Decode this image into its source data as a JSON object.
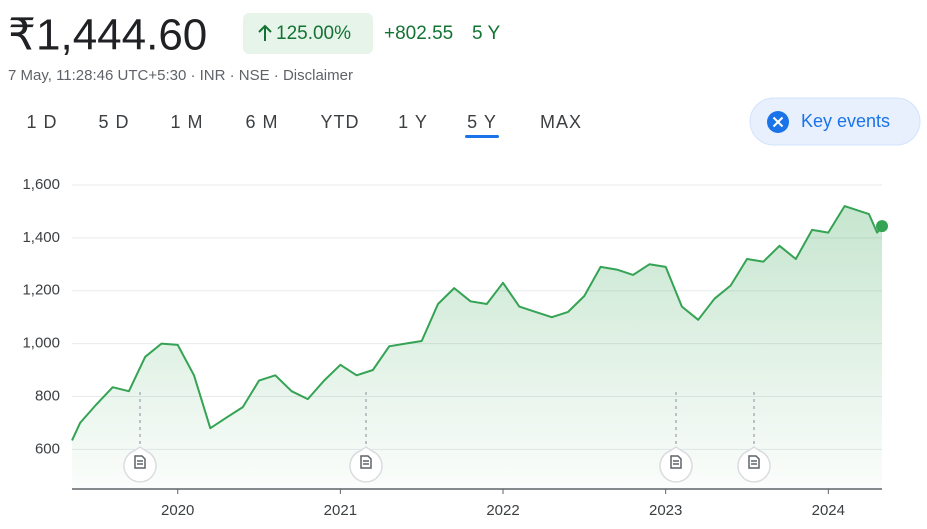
{
  "header": {
    "price": "₹1,444.60",
    "change_percent": "125.00%",
    "change": "+802.55",
    "period": "5 Y",
    "meta": "7 May, 11:28:46 UTC+5:30 · INR · NSE · Disclaimer"
  },
  "tabs": {
    "items": [
      "1 D",
      "5 D",
      "1 M",
      "6 M",
      "YTD",
      "1 Y",
      "5 Y",
      "MAX"
    ],
    "selected": 6
  },
  "key_events": "Key events",
  "chart_data": {
    "type": "line",
    "color": "#34a353",
    "x": [
      2019.35,
      2019.4,
      2019.5,
      2019.6,
      2019.7,
      2019.8,
      2019.9,
      2020.0,
      2020.1,
      2020.2,
      2020.3,
      2020.4,
      2020.5,
      2020.6,
      2020.7,
      2020.8,
      2020.9,
      2021.0,
      2021.1,
      2021.2,
      2021.3,
      2021.4,
      2021.5,
      2021.6,
      2021.7,
      2021.8,
      2021.9,
      2022.0,
      2022.1,
      2022.2,
      2022.3,
      2022.4,
      2022.5,
      2022.6,
      2022.7,
      2022.8,
      2022.9,
      2023.0,
      2023.1,
      2023.2,
      2023.3,
      2023.4,
      2023.5,
      2023.6,
      2023.7,
      2023.8,
      2023.9,
      2024.0,
      2024.1,
      2024.2,
      2024.25,
      2024.3,
      2024.33
    ],
    "values": [
      634,
      700,
      770,
      835,
      820,
      950,
      1000,
      995,
      880,
      680,
      720,
      760,
      860,
      880,
      820,
      790,
      860,
      920,
      880,
      900,
      990,
      1000,
      1010,
      1150,
      1210,
      1160,
      1150,
      1230,
      1140,
      1120,
      1100,
      1120,
      1180,
      1290,
      1280,
      1260,
      1300,
      1290,
      1140,
      1090,
      1170,
      1220,
      1320,
      1310,
      1370,
      1320,
      1430,
      1420,
      1520,
      1500,
      1490,
      1420,
      1444.6
    ],
    "xlim": [
      2019.35,
      2024.33
    ],
    "xticks": [
      2020,
      2021,
      2022,
      2023,
      2024
    ],
    "ylim": [
      450,
      1600
    ],
    "yticks": [
      600,
      800,
      {
        "value": 1000,
        "label": "1,000"
      },
      {
        "value": 1200,
        "label": "1,200"
      },
      {
        "value": 1400,
        "label": "1,400"
      },
      {
        "value": 1600,
        "label": "1,600"
      }
    ],
    "grid": true
  }
}
